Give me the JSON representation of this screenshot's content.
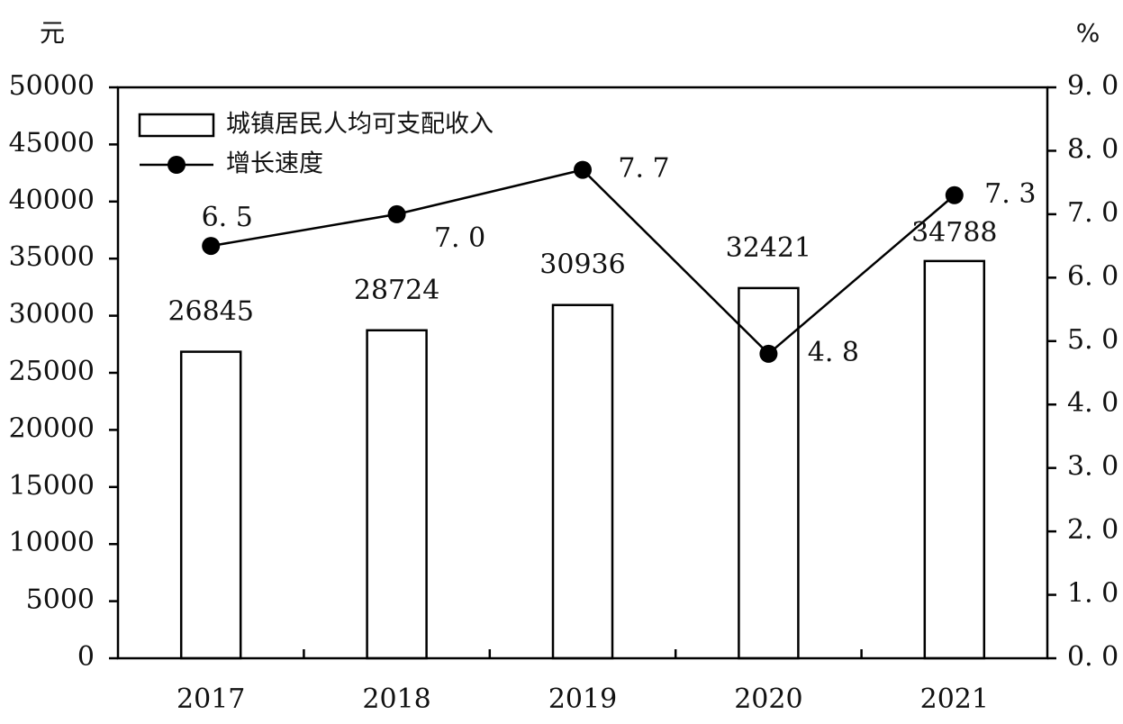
{
  "chart_data": {
    "type": "bar+line",
    "categories": [
      "2017",
      "2018",
      "2019",
      "2020",
      "2021"
    ],
    "series": [
      {
        "name": "城镇居民人均可支配收入",
        "type": "bar",
        "axis": "left",
        "values": [
          26845,
          28724,
          30936,
          32421,
          34788
        ],
        "labels": [
          "26845",
          "28724",
          "30936",
          "32421",
          "34788"
        ]
      },
      {
        "name": "增长速度",
        "type": "line",
        "axis": "right",
        "values": [
          6.5,
          7.0,
          7.7,
          4.8,
          7.3
        ],
        "labels": [
          "6. 5",
          "7. 0",
          "7. 7",
          "4. 8",
          "7. 3"
        ]
      }
    ],
    "left_axis": {
      "unit": "元",
      "ylim": [
        0,
        50000
      ],
      "ticks": [
        "0",
        "5000",
        "10000",
        "15000",
        "20000",
        "25000",
        "30000",
        "35000",
        "40000",
        "45000",
        "50000"
      ]
    },
    "right_axis": {
      "unit": "%",
      "ylim": [
        0,
        9
      ],
      "ticks": [
        "0. 0",
        "1. 0",
        "2. 0",
        "3. 0",
        "4. 0",
        "5. 0",
        "6. 0",
        "7. 0",
        "8. 0",
        "9. 0"
      ]
    },
    "legend_placement": "top-left",
    "grid": false
  }
}
